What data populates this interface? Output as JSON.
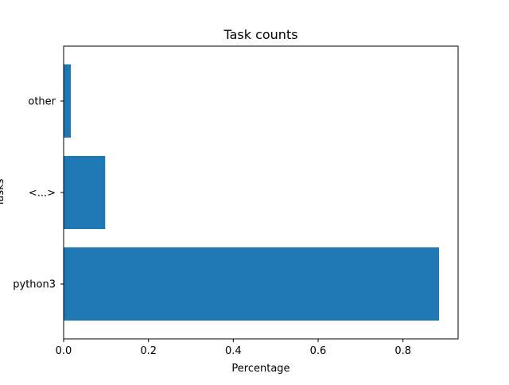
{
  "chart_data": {
    "type": "bar",
    "orientation": "horizontal",
    "title": "Task counts",
    "xlabel": "Percentage",
    "ylabel": "Tasks",
    "categories": [
      "python3",
      "<...>",
      "other"
    ],
    "values": [
      0.885,
      0.098,
      0.017
    ],
    "xlim": [
      0,
      0.93
    ],
    "xticks": [
      0.0,
      0.2,
      0.4,
      0.6,
      0.8
    ],
    "xtick_labels": [
      "0.0",
      "0.2",
      "0.4",
      "0.6",
      "0.8"
    ],
    "bar_color": "#1f77b4",
    "grid": false,
    "legend": "none"
  }
}
